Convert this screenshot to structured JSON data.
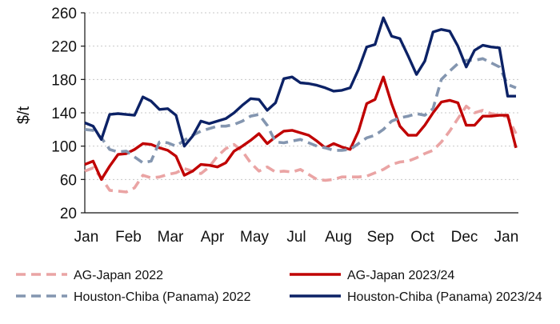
{
  "chart_data": {
    "type": "line",
    "title": "",
    "xlabel": "",
    "ylabel": "$/t",
    "ylim": [
      20,
      260
    ],
    "yticks": [
      20,
      60,
      100,
      140,
      180,
      220,
      260
    ],
    "grid": "horizontal dotted",
    "legend_position": "bottom",
    "x_tick_labels": [
      "Jan",
      "Feb",
      "Mar",
      "Apr",
      "May",
      "Jul",
      "Aug",
      "Sep",
      "Oct",
      "Dec",
      "Jan"
    ],
    "series": [
      {
        "name": "AG-Japan 2022",
        "color": "#eaa4a4",
        "dash": "dashed",
        "values": [
          70,
          74,
          62,
          47,
          46,
          45,
          50,
          65,
          62,
          63,
          66,
          68,
          73,
          70,
          67,
          75,
          88,
          97,
          102,
          94,
          80,
          70,
          75,
          69,
          70,
          69,
          72,
          66,
          60,
          59,
          60,
          63,
          63,
          63,
          64,
          68,
          72,
          78,
          81,
          82,
          86,
          91,
          95,
          105,
          118,
          133,
          148,
          140,
          143,
          139,
          137,
          135,
          115
        ]
      },
      {
        "name": "AG-Japan 2023/24",
        "color": "#c00000",
        "dash": "solid",
        "values": [
          78,
          82,
          60,
          76,
          90,
          91,
          96,
          103,
          102,
          98,
          95,
          88,
          65,
          70,
          78,
          77,
          75,
          80,
          94,
          100,
          107,
          115,
          103,
          111,
          118,
          119,
          116,
          113,
          106,
          98,
          103,
          99,
          96,
          118,
          151,
          156,
          183,
          151,
          124,
          113,
          113,
          125,
          140,
          153,
          155,
          152,
          125,
          125,
          136,
          136,
          137,
          137,
          98
        ]
      },
      {
        "name": "Houston-Chiba (Panama) 2022",
        "color": "#8496b0",
        "dash": "dashed",
        "values": [
          120,
          119,
          110,
          96,
          93,
          94,
          87,
          80,
          82,
          105,
          104,
          100,
          107,
          113,
          118,
          121,
          124,
          124,
          126,
          130,
          136,
          138,
          125,
          105,
          104,
          106,
          108,
          104,
          100,
          98,
          95,
          95,
          96,
          103,
          110,
          113,
          120,
          130,
          134,
          136,
          139,
          137,
          145,
          180,
          190,
          199,
          203,
          203,
          205,
          200,
          195,
          174,
          170
        ]
      },
      {
        "name": "Houston-Chiba (Panama) 2023/24",
        "color": "#0c2266",
        "dash": "solid",
        "values": [
          128,
          124,
          108,
          138,
          139,
          138,
          137,
          159,
          154,
          144,
          145,
          137,
          100,
          112,
          130,
          127,
          130,
          133,
          140,
          149,
          157,
          156,
          143,
          152,
          181,
          183,
          176,
          175,
          173,
          170,
          166,
          167,
          170,
          192,
          219,
          222,
          254,
          232,
          229,
          208,
          186,
          202,
          237,
          240,
          238,
          220,
          195,
          215,
          221,
          219,
          218,
          160,
          160
        ]
      }
    ]
  }
}
